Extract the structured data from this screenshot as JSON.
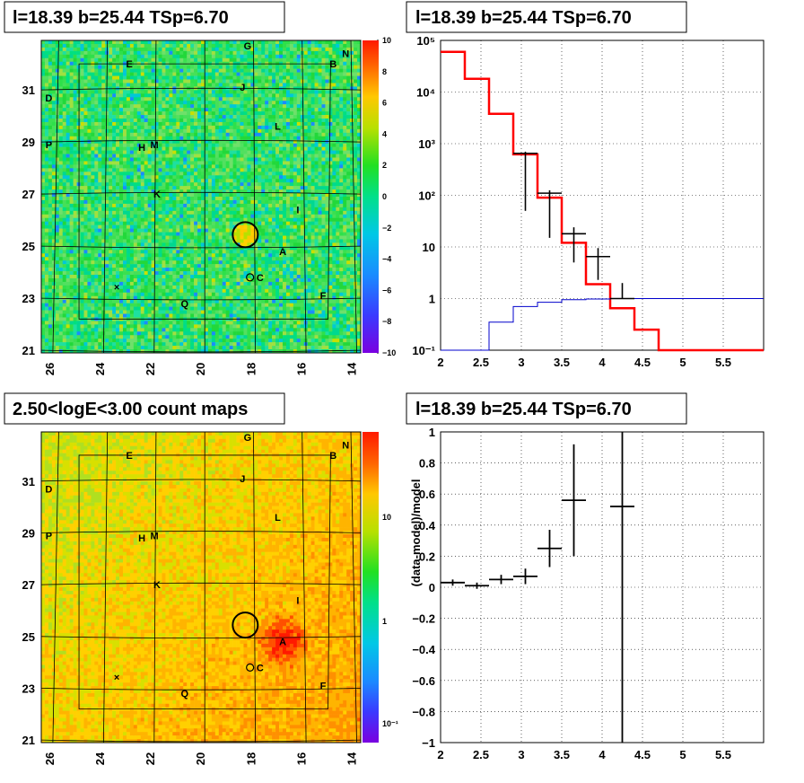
{
  "panels": {
    "top_left_title": "l=18.39 b=25.44 TSp=6.70",
    "top_right_title": "l=18.39 b=25.44 TSp=6.70",
    "bottom_left_title": "2.50<logE<3.00 count maps",
    "bottom_right_title": "l=18.39 b=25.44 TSp=6.70"
  },
  "colors": {
    "red": "#ff0000",
    "blue": "#0000cc",
    "black": "#000000"
  },
  "chart_data": [
    {
      "type": "heatmap",
      "panel": "top-left",
      "title": "l=18.39 b=25.44 TSp=6.70",
      "xlim": [
        26.5,
        13.8
      ],
      "ylim": [
        20.9,
        32.9
      ],
      "x_ticks": [
        "26",
        "24",
        "22",
        "20",
        "18",
        "16",
        "14"
      ],
      "y_ticks": [
        "21",
        "23",
        "25",
        "27",
        "29",
        "31"
      ],
      "colorbar": {
        "min": -10,
        "max": 10,
        "ticks": [
          "10",
          "8",
          "6",
          "4",
          "2",
          "0",
          "−2",
          "−4",
          "−6",
          "−8",
          "−10"
        ]
      },
      "sources": [
        {
          "label": "G",
          "l": 18.3,
          "b": 32.7
        },
        {
          "label": "N",
          "l": 14.4,
          "b": 32.4
        },
        {
          "label": "E",
          "l": 23.0,
          "b": 32.0
        },
        {
          "label": "B",
          "l": 14.9,
          "b": 32.0
        },
        {
          "label": "D",
          "l": 26.2,
          "b": 30.7
        },
        {
          "label": "J",
          "l": 18.5,
          "b": 31.1
        },
        {
          "label": "L",
          "l": 17.1,
          "b": 29.6
        },
        {
          "label": "P",
          "l": 26.2,
          "b": 28.9
        },
        {
          "label": "H",
          "l": 22.5,
          "b": 28.8
        },
        {
          "label": "M",
          "l": 22.0,
          "b": 28.9
        },
        {
          "label": "K",
          "l": 21.9,
          "b": 27.0
        },
        {
          "label": "I",
          "l": 16.3,
          "b": 26.4
        },
        {
          "label": "A",
          "l": 16.9,
          "b": 24.8
        },
        {
          "label": "C",
          "l": 17.8,
          "b": 23.8
        },
        {
          "label": "F",
          "l": 15.3,
          "b": 23.1
        },
        {
          "label": "Q",
          "l": 20.8,
          "b": 22.8
        }
      ],
      "marker_x": {
        "l": 23.5,
        "b": 23.4
      },
      "marker_o": {
        "l": 18.2,
        "b": 23.8
      },
      "circle": {
        "l": 18.39,
        "b": 25.44
      }
    },
    {
      "type": "line",
      "panel": "top-right",
      "title": "l=18.39 b=25.44 TSp=6.70",
      "xlim": [
        2,
        6
      ],
      "ylim": [
        0.1,
        100000
      ],
      "y_scale": "log",
      "x_ticks": [
        "2",
        "2.5",
        "3",
        "3.5",
        "4",
        "4.5",
        "5",
        "5.5"
      ],
      "y_ticks": [
        "10⁵",
        "10⁴",
        "10³",
        "10²",
        "10",
        "1",
        "10⁻¹"
      ],
      "bin_edges": [
        2.0,
        2.3,
        2.6,
        2.9,
        3.2,
        3.5,
        3.8,
        4.1,
        4.4,
        4.7,
        5.0,
        5.3,
        5.6,
        5.9,
        6.2
      ],
      "series": [
        {
          "values": [
            60000,
            18000,
            3800,
            620,
            90,
            12,
            1.9,
            0.65,
            0.25,
            0.1,
            0.1,
            0.1,
            0.1,
            0.1
          ]
        },
        {
          "values": [
            0.01,
            0.1,
            0.35,
            0.7,
            0.85,
            0.95,
            0.98,
            1.0,
            1.0,
            1.0,
            1.0,
            1.0,
            1.0,
            1.0
          ]
        },
        {
          "x": [
            3.05,
            3.35,
            3.65,
            3.95,
            4.25
          ],
          "values": [
            650,
            110,
            18,
            6.5,
            1.0
          ],
          "yerr_low": [
            600,
            95,
            13,
            4.2,
            0.0
          ],
          "yerr_high": [
            700,
            125,
            24,
            9.5,
            2.0
          ]
        }
      ]
    },
    {
      "type": "heatmap",
      "panel": "bottom-left",
      "title": "2.50<logE<3.00 count maps",
      "xlim": [
        26.5,
        13.8
      ],
      "ylim": [
        20.9,
        32.9
      ],
      "x_ticks": [
        "26",
        "24",
        "22",
        "20",
        "18",
        "16",
        "14"
      ],
      "y_ticks": [
        "21",
        "23",
        "25",
        "27",
        "29",
        "31"
      ],
      "colorbar": {
        "scale": "log",
        "min": 0.07,
        "max": 40,
        "ticks": [
          "10",
          "1",
          "10⁻¹"
        ]
      },
      "hotspot": {
        "l": 16.9,
        "b": 24.8
      },
      "sources_same_as": "top-left"
    },
    {
      "type": "scatter",
      "panel": "bottom-right",
      "title": "l=18.39 b=25.44 TSp=6.70",
      "ylabel": "(data-model)/model",
      "xlim": [
        2,
        6
      ],
      "ylim": [
        -1,
        1
      ],
      "x_ticks": [
        "2",
        "2.5",
        "3",
        "3.5",
        "4",
        "4.5",
        "5",
        "5.5"
      ],
      "y_ticks": [
        "1",
        "0.8",
        "0.6",
        "0.4",
        "0.2",
        "0",
        "−0.2",
        "−0.4",
        "−0.6",
        "−0.8",
        "−1"
      ],
      "points": [
        {
          "x": 2.15,
          "xerr": 0.15,
          "y": 0.03,
          "yerr": 0.02
        },
        {
          "x": 2.45,
          "xerr": 0.15,
          "y": 0.01,
          "yerr": 0.02
        },
        {
          "x": 2.75,
          "xerr": 0.15,
          "y": 0.05,
          "yerr": 0.03
        },
        {
          "x": 3.05,
          "xerr": 0.15,
          "y": 0.07,
          "yerr": 0.05
        },
        {
          "x": 3.35,
          "xerr": 0.15,
          "y": 0.25,
          "yerr": 0.12
        },
        {
          "x": 3.65,
          "xerr": 0.15,
          "y": 0.56,
          "yerr": 0.36
        },
        {
          "x": 4.25,
          "xerr": 0.15,
          "y": 0.52,
          "yerr": 1.6
        }
      ]
    }
  ]
}
